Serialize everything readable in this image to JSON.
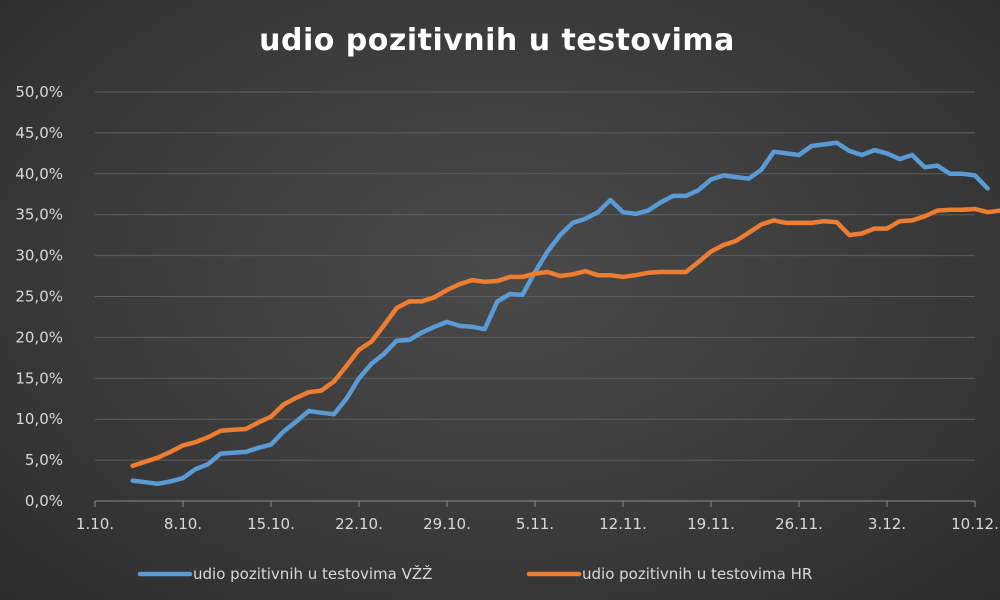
{
  "chart_data": {
    "type": "line",
    "title": "udio pozitivnih u testovima",
    "xlabel": "",
    "ylabel": "",
    "x_tick_labels": [
      "1.10.",
      "8.10.",
      "15.10.",
      "22.10.",
      "29.10.",
      "5.11.",
      "12.11.",
      "19.11.",
      "26.11.",
      "3.12.",
      "10.12."
    ],
    "y_tick_labels": [
      "0,0%",
      "5,0%",
      "10,0%",
      "15,0%",
      "20,0%",
      "25,0%",
      "30,0%",
      "35,0%",
      "40,0%",
      "45,0%",
      "50,0%"
    ],
    "ylim": [
      0,
      50
    ],
    "grid": true,
    "legend_position": "bottom",
    "series": [
      {
        "name": "udio pozitivnih u testovima VŽŽ",
        "color": "#5b9bd5",
        "points": [
          [
            3,
            2.5
          ],
          [
            4,
            2.3
          ],
          [
            5,
            2.1
          ],
          [
            6,
            2.4
          ],
          [
            7,
            2.8
          ],
          [
            8,
            3.9
          ],
          [
            9,
            4.5
          ],
          [
            10,
            5.8
          ],
          [
            11,
            5.9
          ],
          [
            12,
            6.0
          ],
          [
            13,
            6.5
          ],
          [
            14,
            6.9
          ],
          [
            15,
            8.5
          ],
          [
            16,
            9.7
          ],
          [
            17,
            11.0
          ],
          [
            18,
            10.8
          ],
          [
            19,
            10.6
          ],
          [
            20,
            12.5
          ],
          [
            21,
            15.0
          ],
          [
            22,
            16.8
          ],
          [
            23,
            18.0
          ],
          [
            24,
            19.6
          ],
          [
            25,
            19.7
          ],
          [
            26,
            20.6
          ],
          [
            27,
            21.3
          ],
          [
            28,
            21.9
          ],
          [
            29,
            21.4
          ],
          [
            30,
            21.3
          ],
          [
            31,
            21.0
          ],
          [
            32,
            24.4
          ],
          [
            33,
            25.3
          ],
          [
            34,
            25.2
          ],
          [
            35,
            28.0
          ],
          [
            36,
            30.5
          ],
          [
            37,
            32.5
          ],
          [
            38,
            34.0
          ],
          [
            39,
            34.5
          ],
          [
            40,
            35.3
          ],
          [
            41,
            36.8
          ],
          [
            42,
            35.3
          ],
          [
            43,
            35.1
          ],
          [
            44,
            35.5
          ],
          [
            45,
            36.5
          ],
          [
            46,
            37.3
          ],
          [
            47,
            37.3
          ],
          [
            48,
            38.0
          ],
          [
            49,
            39.3
          ],
          [
            50,
            39.8
          ],
          [
            51,
            39.6
          ],
          [
            52,
            39.4
          ],
          [
            53,
            40.5
          ],
          [
            54,
            42.7
          ],
          [
            55,
            42.5
          ],
          [
            56,
            42.3
          ],
          [
            57,
            43.4
          ],
          [
            58,
            43.6
          ],
          [
            59,
            43.8
          ],
          [
            60,
            42.8
          ],
          [
            61,
            42.3
          ],
          [
            62,
            42.9
          ],
          [
            63,
            42.5
          ],
          [
            64,
            41.8
          ],
          [
            65,
            42.3
          ],
          [
            66,
            40.8
          ],
          [
            67,
            41.0
          ],
          [
            68,
            40.0
          ],
          [
            69,
            40.0
          ],
          [
            70,
            39.8
          ],
          [
            71,
            38.2
          ]
        ]
      },
      {
        "name": "udio pozitivnih u testovima HR",
        "color": "#ed7d31",
        "points": [
          [
            3,
            4.3
          ],
          [
            4,
            4.8
          ],
          [
            5,
            5.3
          ],
          [
            6,
            6.0
          ],
          [
            7,
            6.8
          ],
          [
            8,
            7.2
          ],
          [
            9,
            7.8
          ],
          [
            10,
            8.6
          ],
          [
            11,
            8.7
          ],
          [
            12,
            8.8
          ],
          [
            13,
            9.6
          ],
          [
            14,
            10.3
          ],
          [
            15,
            11.8
          ],
          [
            16,
            12.6
          ],
          [
            17,
            13.3
          ],
          [
            18,
            13.5
          ],
          [
            19,
            14.6
          ],
          [
            20,
            16.5
          ],
          [
            21,
            18.5
          ],
          [
            22,
            19.5
          ],
          [
            23,
            21.5
          ],
          [
            24,
            23.6
          ],
          [
            25,
            24.4
          ],
          [
            26,
            24.4
          ],
          [
            27,
            24.9
          ],
          [
            28,
            25.8
          ],
          [
            29,
            26.5
          ],
          [
            30,
            27.0
          ],
          [
            31,
            26.8
          ],
          [
            32,
            26.9
          ],
          [
            33,
            27.4
          ],
          [
            34,
            27.4
          ],
          [
            35,
            27.8
          ],
          [
            36,
            28.0
          ],
          [
            37,
            27.5
          ],
          [
            38,
            27.7
          ],
          [
            39,
            28.1
          ],
          [
            40,
            27.6
          ],
          [
            41,
            27.6
          ],
          [
            42,
            27.4
          ],
          [
            43,
            27.6
          ],
          [
            44,
            27.9
          ],
          [
            45,
            28.0
          ],
          [
            46,
            28.0
          ],
          [
            47,
            28.0
          ],
          [
            48,
            29.2
          ],
          [
            49,
            30.5
          ],
          [
            50,
            31.3
          ],
          [
            51,
            31.8
          ],
          [
            52,
            32.8
          ],
          [
            53,
            33.8
          ],
          [
            54,
            34.3
          ],
          [
            55,
            34.0
          ],
          [
            56,
            34.0
          ],
          [
            57,
            34.0
          ],
          [
            58,
            34.2
          ],
          [
            59,
            34.1
          ],
          [
            60,
            32.5
          ],
          [
            61,
            32.7
          ],
          [
            62,
            33.3
          ],
          [
            63,
            33.3
          ],
          [
            64,
            34.2
          ],
          [
            65,
            34.3
          ],
          [
            66,
            34.8
          ],
          [
            67,
            35.5
          ],
          [
            68,
            35.6
          ],
          [
            69,
            35.6
          ],
          [
            70,
            35.7
          ],
          [
            71,
            35.3
          ],
          [
            72,
            35.5
          ]
        ]
      }
    ]
  }
}
